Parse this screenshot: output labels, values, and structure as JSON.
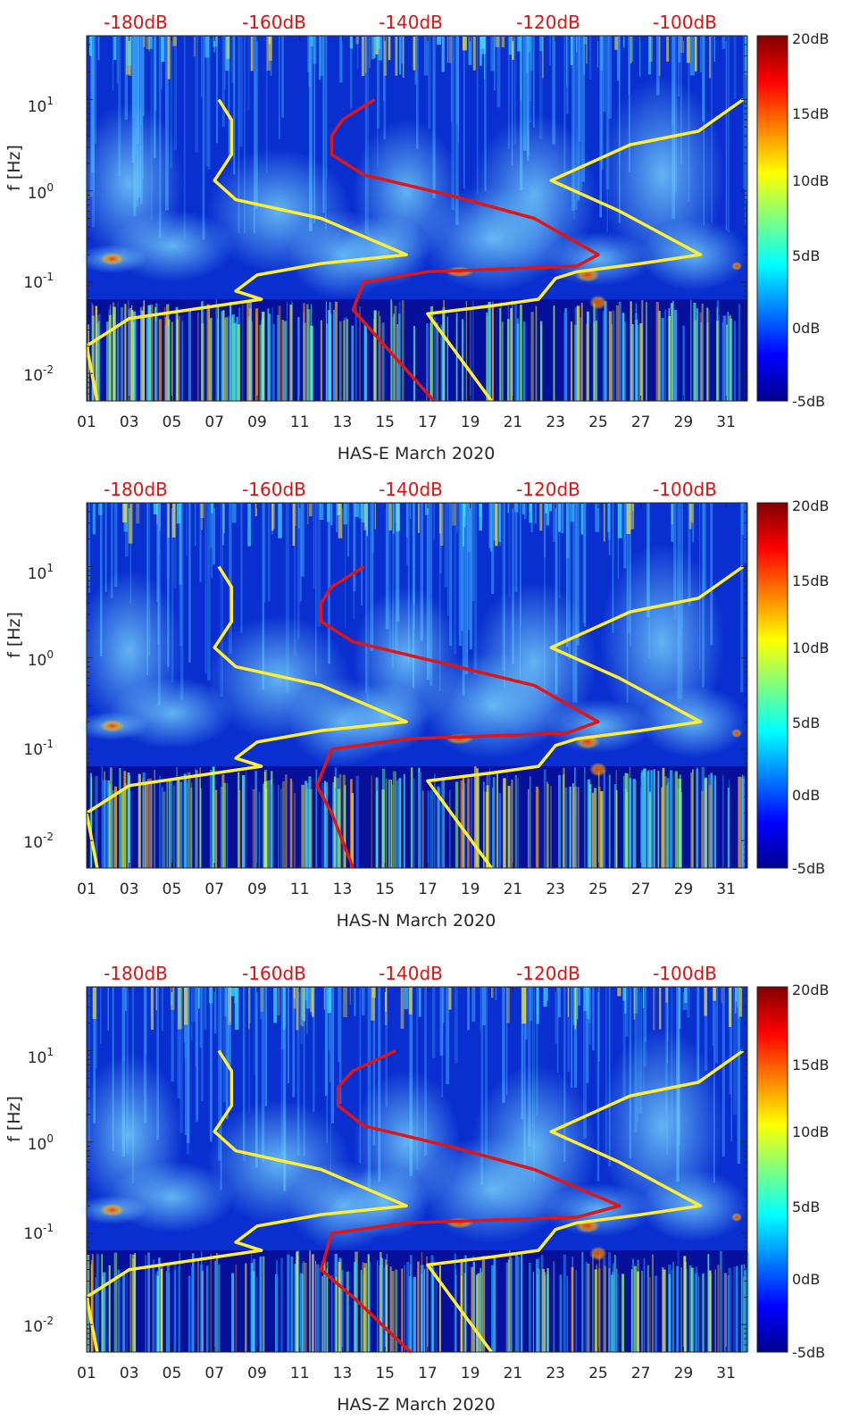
{
  "chart_data": [
    {
      "type": "heatmap",
      "xlabel": "HAS-E March 2020",
      "ylabel": "f [Hz]",
      "x_tick_labels": [
        "01",
        "03",
        "05",
        "07",
        "09",
        "11",
        "13",
        "15",
        "17",
        "19",
        "21",
        "23",
        "25",
        "27",
        "29",
        "31"
      ],
      "x_range_days": [
        1,
        32
      ],
      "y_scale": "log",
      "y_range_hz": [
        0.005,
        50
      ],
      "y_tick_labels": [
        "10^-2",
        "10^-1",
        "10^0",
        "10^1"
      ],
      "top_axis_labels": [
        "-180dB",
        "-160dB",
        "-140dB",
        "-120dB",
        "-100dB"
      ],
      "top_axis_range_db": [
        -190,
        -93
      ],
      "colorbar_labels": [
        "20dB",
        "15dB",
        "10dB",
        "5dB",
        "0dB",
        "-5dB"
      ],
      "colorbar_range_db": [
        -5,
        20
      ],
      "series": [
        {
          "name": "yellow-curve-left",
          "color": "#ffee33",
          "x_day": [
            7.2,
            7.8,
            7.8,
            7.0,
            8.0,
            12.0,
            16.0,
            12.0,
            9.0,
            8.0,
            9.2,
            3.0,
            1.0,
            1.5
          ],
          "y_hz": [
            10,
            6,
            2.5,
            1.3,
            0.8,
            0.5,
            0.2,
            0.16,
            0.12,
            0.08,
            0.065,
            0.04,
            0.02,
            0.005
          ]
        },
        {
          "name": "red-curve-psd",
          "color": "#e01515",
          "x_day": [
            14.5,
            13.0,
            12.5,
            12.5,
            14.0,
            18.0,
            22.0,
            25.0,
            24.0,
            17.0,
            14.0,
            13.5,
            15.0,
            17.3
          ],
          "y_hz": [
            10,
            6,
            4.0,
            2.5,
            1.5,
            0.9,
            0.5,
            0.2,
            0.15,
            0.13,
            0.1,
            0.05,
            0.02,
            0.005
          ]
        },
        {
          "name": "yellow-curve-right",
          "color": "#ffee33",
          "x_day": [
            31.8,
            29.7,
            26.5,
            22.8,
            26.0,
            29.8,
            27.0,
            24.0,
            23.0,
            22.2,
            20.0,
            17.0,
            20.0
          ],
          "y_hz": [
            10,
            4.5,
            3.2,
            1.3,
            0.6,
            0.2,
            0.16,
            0.13,
            0.11,
            0.065,
            0.055,
            0.045,
            0.005
          ]
        }
      ]
    },
    {
      "type": "heatmap",
      "xlabel": "HAS-N March 2020",
      "ylabel": "f [Hz]",
      "x_tick_labels": [
        "01",
        "03",
        "05",
        "07",
        "09",
        "11",
        "13",
        "15",
        "17",
        "19",
        "21",
        "23",
        "25",
        "27",
        "29",
        "31"
      ],
      "x_range_days": [
        1,
        32
      ],
      "y_scale": "log",
      "y_range_hz": [
        0.005,
        50
      ],
      "y_tick_labels": [
        "10^-2",
        "10^-1",
        "10^0",
        "10^1"
      ],
      "top_axis_labels": [
        "-180dB",
        "-160dB",
        "-140dB",
        "-120dB",
        "-100dB"
      ],
      "top_axis_range_db": [
        -190,
        -93
      ],
      "colorbar_labels": [
        "20dB",
        "15dB",
        "10dB",
        "5dB",
        "0dB",
        "-5dB"
      ],
      "colorbar_range_db": [
        -5,
        20
      ],
      "series": [
        {
          "name": "yellow-curve-left",
          "color": "#ffee33",
          "x_day": [
            7.2,
            7.8,
            7.8,
            7.0,
            8.0,
            12.0,
            16.0,
            12.0,
            9.0,
            8.0,
            9.2,
            3.0,
            1.0,
            1.5
          ],
          "y_hz": [
            10,
            6,
            2.5,
            1.3,
            0.8,
            0.5,
            0.2,
            0.16,
            0.12,
            0.08,
            0.065,
            0.04,
            0.02,
            0.005
          ]
        },
        {
          "name": "red-curve-psd",
          "color": "#e01515",
          "x_day": [
            14.0,
            12.5,
            12.0,
            12.0,
            13.5,
            17.5,
            22.0,
            25.0,
            23.5,
            16.0,
            12.5,
            11.8,
            12.5,
            13.5
          ],
          "y_hz": [
            10,
            6,
            4.0,
            2.5,
            1.5,
            0.9,
            0.5,
            0.2,
            0.15,
            0.13,
            0.1,
            0.04,
            0.02,
            0.005
          ]
        },
        {
          "name": "yellow-curve-right",
          "color": "#ffee33",
          "x_day": [
            31.8,
            29.7,
            26.5,
            22.8,
            26.0,
            29.8,
            27.0,
            24.0,
            23.0,
            22.2,
            20.0,
            17.0,
            20.0
          ],
          "y_hz": [
            10,
            4.5,
            3.2,
            1.3,
            0.6,
            0.2,
            0.16,
            0.13,
            0.11,
            0.065,
            0.055,
            0.045,
            0.005
          ]
        }
      ]
    },
    {
      "type": "heatmap",
      "xlabel": "HAS-Z March 2020",
      "ylabel": "f [Hz]",
      "x_tick_labels": [
        "01",
        "03",
        "05",
        "07",
        "09",
        "11",
        "13",
        "15",
        "17",
        "19",
        "21",
        "23",
        "25",
        "27",
        "29",
        "31"
      ],
      "x_range_days": [
        1,
        32
      ],
      "y_scale": "log",
      "y_range_hz": [
        0.005,
        50
      ],
      "y_tick_labels": [
        "10^-2",
        "10^-1",
        "10^0",
        "10^1"
      ],
      "top_axis_labels": [
        "-180dB",
        "-160dB",
        "-140dB",
        "-120dB",
        "-100dB"
      ],
      "top_axis_range_db": [
        -190,
        -93
      ],
      "colorbar_labels": [
        "20dB",
        "15dB",
        "10dB",
        "5dB",
        "0dB",
        "-5dB"
      ],
      "colorbar_range_db": [
        -5,
        20
      ],
      "series": [
        {
          "name": "yellow-curve-left",
          "color": "#ffee33",
          "x_day": [
            7.2,
            7.8,
            7.8,
            7.0,
            8.0,
            12.0,
            16.0,
            12.0,
            9.0,
            8.0,
            9.2,
            3.0,
            1.0,
            1.5
          ],
          "y_hz": [
            10,
            6,
            2.5,
            1.3,
            0.8,
            0.5,
            0.2,
            0.16,
            0.12,
            0.08,
            0.065,
            0.04,
            0.02,
            0.005
          ]
        },
        {
          "name": "red-curve-psd",
          "color": "#e01515",
          "x_day": [
            15.5,
            13.5,
            12.8,
            12.8,
            14.0,
            18.0,
            22.0,
            26.0,
            24.0,
            16.0,
            12.5,
            12.0,
            13.5,
            16.2
          ],
          "y_hz": [
            10,
            6,
            4.0,
            2.5,
            1.5,
            0.9,
            0.5,
            0.2,
            0.15,
            0.13,
            0.1,
            0.04,
            0.02,
            0.005
          ]
        },
        {
          "name": "yellow-curve-right",
          "color": "#ffee33",
          "x_day": [
            31.8,
            29.7,
            26.5,
            22.8,
            26.0,
            29.8,
            27.0,
            24.0,
            23.0,
            22.2,
            20.0,
            17.0,
            20.0
          ],
          "y_hz": [
            10,
            4.5,
            3.2,
            1.3,
            0.6,
            0.2,
            0.16,
            0.13,
            0.11,
            0.065,
            0.055,
            0.045,
            0.005
          ]
        }
      ]
    }
  ]
}
